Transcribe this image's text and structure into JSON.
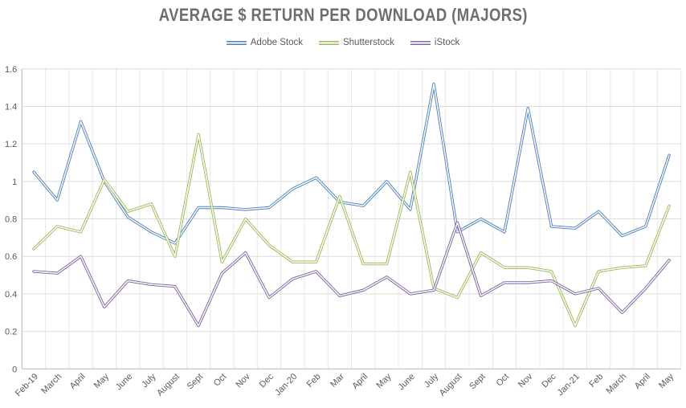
{
  "chart_data": {
    "type": "line",
    "title": "AVERAGE $ RETURN PER DOWNLOAD (MAJORS)",
    "categories": [
      "Feb-19",
      "March",
      "April",
      "May",
      "June",
      "July",
      "August",
      "Sept",
      "Oct",
      "Nov",
      "Dec",
      "Jan-20",
      "Feb",
      "Mar",
      "April",
      "May",
      "June",
      "July",
      "August",
      "Sept",
      "Oct",
      "Nov",
      "Dec",
      "Jan-21",
      "Feb",
      "March",
      "April",
      "May"
    ],
    "series": [
      {
        "name": "Adobe Stock",
        "color": "#4F81BD",
        "values": [
          1.05,
          0.9,
          1.32,
          1.0,
          0.81,
          0.73,
          0.67,
          0.86,
          0.86,
          0.85,
          0.86,
          0.96,
          1.02,
          0.89,
          0.87,
          1.0,
          0.85,
          1.52,
          0.73,
          0.8,
          0.73,
          1.39,
          0.76,
          0.75,
          0.84,
          0.71,
          0.76,
          1.14
        ]
      },
      {
        "name": "Shutterstock",
        "color": "#9BBB59",
        "values": [
          0.64,
          0.76,
          0.73,
          1.01,
          0.84,
          0.88,
          0.6,
          1.25,
          0.57,
          0.8,
          0.66,
          0.57,
          0.57,
          0.92,
          0.56,
          0.56,
          1.05,
          0.43,
          0.38,
          0.62,
          0.54,
          0.54,
          0.52,
          0.23,
          0.52,
          0.54,
          0.55,
          0.87
        ]
      },
      {
        "name": "iStock",
        "color": "#8064A2",
        "values": [
          0.52,
          0.51,
          0.6,
          0.33,
          0.47,
          0.45,
          0.44,
          0.23,
          0.51,
          0.62,
          0.38,
          0.48,
          0.52,
          0.39,
          0.42,
          0.49,
          0.4,
          0.42,
          0.78,
          0.39,
          0.46,
          0.46,
          0.47,
          0.4,
          0.43,
          0.3,
          0.43,
          0.58
        ]
      }
    ],
    "ylim": [
      0,
      1.6
    ],
    "ytick_step": 0.2,
    "ytick_labels": [
      "0",
      "0.2",
      "0.4",
      "0.6",
      "0.8",
      "1",
      "1.2",
      "1.4",
      "1.6"
    ],
    "xlabel": "",
    "ylabel": "",
    "grid": true,
    "legend_position": "top",
    "colors": {
      "title_text": "#6E6E6E",
      "axis_text": "#595959",
      "gridline_h": "#DCDCDC",
      "gridline_v": "#E8E8E8",
      "axis_line": "#BFBFBF",
      "background": "#FFFFFF",
      "line_core": "#FFFFFF"
    }
  }
}
